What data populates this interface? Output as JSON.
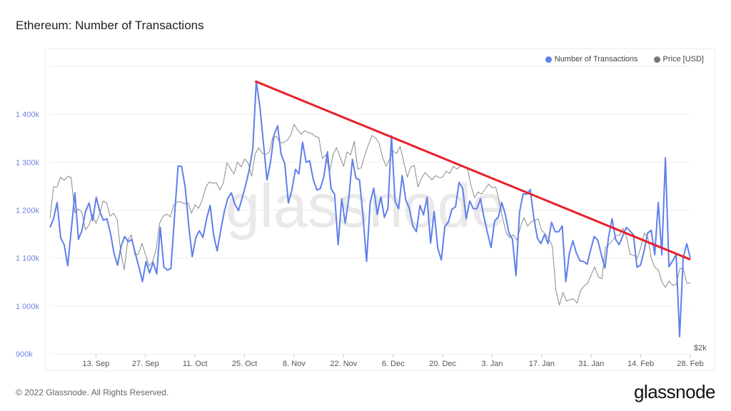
{
  "title": "Ethereum: Number of Transactions",
  "footer": "© 2022 Glassnode. All Rights Reserved.",
  "logo": "glassnode",
  "watermark": "glassnode",
  "colors": {
    "transactions": "#5f7fea",
    "price": "#8a8a8a",
    "trendline": "#e8202a",
    "grid": "#efefef"
  },
  "chart_data": {
    "type": "line",
    "title": "Ethereum: Number of Transactions",
    "x_range": [
      "2021-08-31",
      "2022-02-28"
    ],
    "x_ticks": [
      {
        "label": "13. Sep",
        "date": "2021-09-13"
      },
      {
        "label": "27. Sep",
        "date": "2021-09-27"
      },
      {
        "label": "11. Oct",
        "date": "2021-10-11"
      },
      {
        "label": "25. Oct",
        "date": "2021-10-25"
      },
      {
        "label": "8. Nov",
        "date": "2021-11-08"
      },
      {
        "label": "22. Nov",
        "date": "2021-11-22"
      },
      {
        "label": "6. Dec",
        "date": "2021-12-06"
      },
      {
        "label": "20. Dec",
        "date": "2021-12-20"
      },
      {
        "label": "3. Jan",
        "date": "2022-01-03"
      },
      {
        "label": "17. Jan",
        "date": "2022-01-17"
      },
      {
        "label": "31. Jan",
        "date": "2022-01-31"
      },
      {
        "label": "14. Feb",
        "date": "2022-02-14"
      },
      {
        "label": "28. Feb",
        "date": "2022-02-28"
      }
    ],
    "y_left": {
      "ylim": [
        900,
        1500
      ],
      "unit": "k",
      "ticks": [
        {
          "label": "900k",
          "value": 900
        },
        {
          "label": "1 000k",
          "value": 1000
        },
        {
          "label": "1 100k",
          "value": 1100
        },
        {
          "label": "1 200k",
          "value": 1200
        },
        {
          "label": "1 300k",
          "value": 1300
        },
        {
          "label": "1 400k",
          "value": 1400
        }
      ],
      "gridlines": [
        900,
        1000,
        1100,
        1200,
        1300,
        1400,
        1500
      ]
    },
    "y_right": {
      "scale": "log",
      "ylim": [
        1970,
        6290
      ],
      "ticks": [
        {
          "label": "$2k",
          "value": 2000
        }
      ]
    },
    "grid": true,
    "legend_position": "top-right",
    "series": [
      {
        "name": "Number of Transactions",
        "axis": "left",
        "unit": "thousands",
        "values": [
          1164,
          1182,
          1216,
          1142,
          1128,
          1084,
          1160,
          1236,
          1139,
          1158,
          1197,
          1215,
          1178,
          1227,
          1197,
          1179,
          1182,
          1152,
          1110,
          1085,
          1125,
          1145,
          1134,
          1139,
          1110,
          1081,
          1051,
          1093,
          1069,
          1091,
          1067,
          1164,
          1081,
          1075,
          1078,
          1185,
          1292,
          1291,
          1248,
          1167,
          1103,
          1143,
          1157,
          1143,
          1181,
          1210,
          1149,
          1115,
          1158,
          1197,
          1225,
          1236,
          1212,
          1199,
          1225,
          1252,
          1284,
          1328,
          1469,
          1416,
          1340,
          1263,
          1301,
          1357,
          1376,
          1316,
          1297,
          1215,
          1242,
          1285,
          1276,
          1342,
          1300,
          1303,
          1264,
          1242,
          1245,
          1270,
          1322,
          1245,
          1233,
          1128,
          1224,
          1173,
          1225,
          1306,
          1267,
          1263,
          1188,
          1093,
          1215,
          1246,
          1191,
          1228,
          1185,
          1203,
          1355,
          1219,
          1203,
          1272,
          1222,
          1204,
          1167,
          1155,
          1210,
          1190,
          1227,
          1131,
          1197,
          1121,
          1096,
          1166,
          1175,
          1202,
          1207,
          1258,
          1245,
          1182,
          1219,
          1203,
          1203,
          1224,
          1185,
          1152,
          1122,
          1178,
          1185,
          1216,
          1191,
          1152,
          1140,
          1063,
          1196,
          1234,
          1233,
          1243,
          1185,
          1142,
          1130,
          1149,
          1130,
          1175,
          1155,
          1155,
          1167,
          1051,
          1110,
          1136,
          1110,
          1094,
          1093,
          1087,
          1118,
          1145,
          1137,
          1107,
          1079,
          1143,
          1182,
          1139,
          1128,
          1146,
          1164,
          1157,
          1149,
          1081,
          1085,
          1115,
          1152,
          1158,
          1107,
          1216,
          1107,
          1309,
          1082,
          1094,
          1107,
          936,
          1100,
          1130,
          1100
        ]
      },
      {
        "name": "Price [USD]",
        "axis": "right",
        "values": [
          3406,
          3866,
          3866,
          4024,
          3968,
          4036,
          4014,
          3485,
          3536,
          3495,
          3253,
          3310,
          3456,
          3338,
          3456,
          3650,
          3629,
          3436,
          3476,
          3387,
          2975,
          2768,
          3115,
          3187,
          2941,
          2945,
          3080,
          2941,
          2808,
          2858,
          3001,
          3338,
          3436,
          3466,
          3426,
          3598,
          3640,
          3640,
          3608,
          3629,
          3476,
          3598,
          3546,
          3660,
          3854,
          3944,
          3922,
          3933,
          3822,
          3922,
          4264,
          4166,
          4072,
          4276,
          4190,
          4326,
          4264,
          4036,
          4413,
          4530,
          4426,
          4413,
          4452,
          4729,
          4742,
          4621,
          4621,
          4662,
          4757,
          4980,
          4866,
          4784,
          4852,
          4812,
          4798,
          4742,
          4715,
          4338,
          4401,
          4095,
          4401,
          4530,
          4362,
          4202,
          4452,
          4401,
          4648,
          4154,
          4179,
          4401,
          4582,
          4757,
          4715,
          4621,
          4362,
          4202,
          4326,
          4465,
          4426,
          4556,
          4276,
          4024,
          4190,
          4214,
          3866,
          4002,
          4095,
          4036,
          3979,
          4048,
          4014,
          4024,
          4119,
          4084,
          4202,
          4154,
          4202,
          4202,
          4166,
          3889,
          3703,
          3789,
          3756,
          3832,
          3911,
          3854,
          3866,
          3640,
          3396,
          3206,
          3151,
          3187,
          3115,
          3290,
          3416,
          3300,
          3358,
          3377,
          3396,
          3244,
          3197,
          3134,
          3044,
          2547,
          2398,
          2525,
          2439,
          2453,
          2460,
          2418,
          2547,
          2592,
          2621,
          2713,
          2800,
          2690,
          2667,
          3028,
          3062,
          3115,
          3179,
          3179,
          3272,
          3151,
          2945,
          2933,
          2899,
          3028,
          3206,
          3151,
          2891,
          2792,
          2761,
          2629,
          2577,
          2644,
          2599,
          2606,
          2777,
          2784,
          2621,
          2621
        ]
      }
    ],
    "annotations": [
      {
        "type": "trendline",
        "from": {
          "date": "2021-10-28",
          "value": 1469
        },
        "to": {
          "date": "2022-02-28",
          "value": 1097
        }
      }
    ]
  }
}
